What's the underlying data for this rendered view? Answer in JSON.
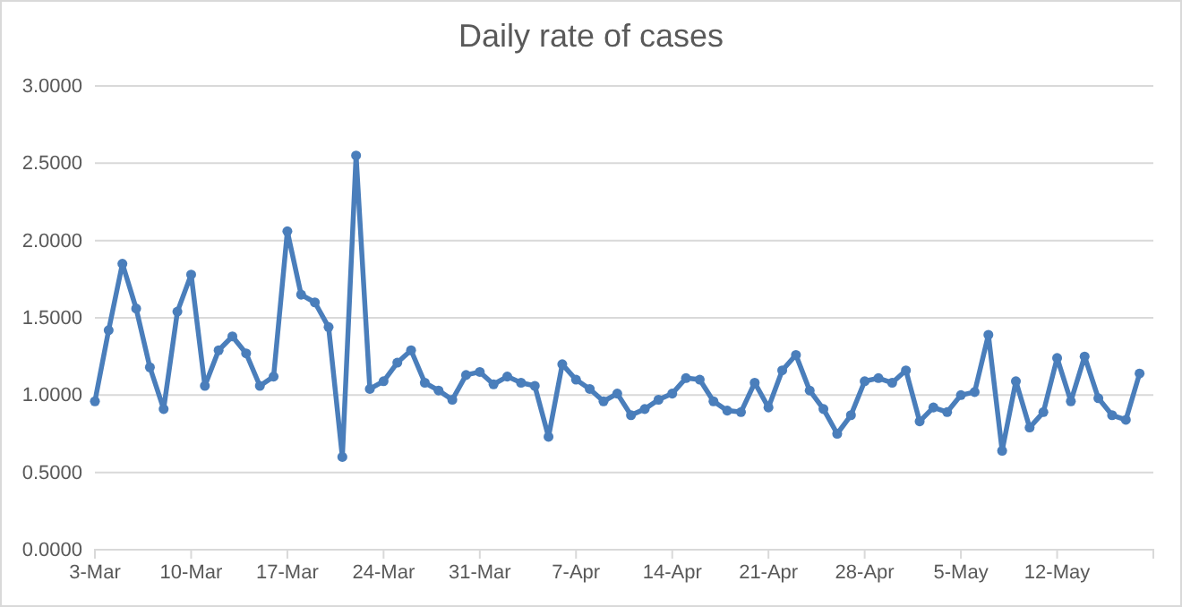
{
  "chart_data": {
    "type": "line",
    "title": "Daily rate of cases",
    "x": [
      "--03-03",
      "--03-04",
      "--03-05",
      "--03-06",
      "--03-07",
      "--03-08",
      "--03-09",
      "--03-10",
      "--03-11",
      "--03-12",
      "--03-13",
      "--03-14",
      "--03-15",
      "--03-16",
      "--03-17",
      "--03-18",
      "--03-19",
      "--03-20",
      "--03-21",
      "--03-22",
      "--03-23",
      "--03-24",
      "--03-25",
      "--03-26",
      "--03-27",
      "--03-28",
      "--03-29",
      "--03-30",
      "--03-31",
      "--04-01",
      "--04-02",
      "--04-03",
      "--04-04",
      "--04-05",
      "--04-06",
      "--04-07",
      "--04-08",
      "--04-09",
      "--04-10",
      "--04-11",
      "--04-12",
      "--04-13",
      "--04-14",
      "--04-15",
      "--04-16",
      "--04-17",
      "--04-18",
      "--04-19",
      "--04-20",
      "--04-21",
      "--04-22",
      "--04-23",
      "--04-24",
      "--04-25",
      "--04-26",
      "--04-27",
      "--04-28",
      "--04-29",
      "--04-30",
      "--05-01",
      "--05-02",
      "--05-03",
      "--05-04",
      "--05-05",
      "--05-06",
      "--05-07",
      "--05-08",
      "--05-09",
      "--05-10",
      "--05-11",
      "--05-12",
      "--05-13",
      "--05-14",
      "--05-15",
      "--05-16",
      "--05-17",
      "--05-18"
    ],
    "series": [
      {
        "color": "#4a7ebb",
        "values": [
          0.96,
          1.42,
          1.85,
          1.56,
          1.18,
          0.91,
          1.54,
          1.78,
          1.06,
          1.29,
          1.38,
          1.27,
          1.06,
          1.12,
          2.06,
          1.65,
          1.6,
          1.44,
          0.6,
          2.55,
          1.04,
          1.09,
          1.21,
          1.29,
          1.08,
          1.03,
          0.97,
          1.13,
          1.15,
          1.07,
          1.12,
          1.08,
          1.06,
          0.73,
          1.2,
          1.1,
          1.04,
          0.96,
          1.01,
          0.87,
          0.91,
          0.97,
          1.01,
          1.11,
          1.1,
          0.96,
          0.9,
          0.89,
          1.08,
          0.92,
          1.16,
          1.26,
          1.03,
          0.91,
          0.75,
          0.87,
          1.09,
          1.11,
          1.08,
          1.16,
          0.83,
          0.92,
          0.89,
          1.0,
          1.02,
          1.39,
          0.64,
          1.09,
          0.79,
          0.89,
          1.24,
          0.96,
          1.25,
          0.98,
          0.87,
          0.84,
          1.14
        ]
      }
    ],
    "xlim": [
      "--03-03",
      "--05-19"
    ],
    "xticks": [
      {
        "value": "--03-03",
        "label": "3-Mar"
      },
      {
        "value": "--03-10",
        "label": "10-Mar"
      },
      {
        "value": "--03-17",
        "label": "17-Mar"
      },
      {
        "value": "--03-24",
        "label": "24-Mar"
      },
      {
        "value": "--03-31",
        "label": "31-Mar"
      },
      {
        "value": "--04-07",
        "label": "7-Apr"
      },
      {
        "value": "--04-14",
        "label": "14-Apr"
      },
      {
        "value": "--04-21",
        "label": "21-Apr"
      },
      {
        "value": "--04-28",
        "label": "28-Apr"
      },
      {
        "value": "--05-05",
        "label": "5-May"
      },
      {
        "value": "--05-12",
        "label": "12-May"
      }
    ],
    "ylim": [
      0,
      3
    ],
    "yticks": [
      {
        "value": 0,
        "label": "0.0000"
      },
      {
        "value": 0.5,
        "label": "0.5000"
      },
      {
        "value": 1,
        "label": "1.0000"
      },
      {
        "value": 1.5,
        "label": "1.5000"
      },
      {
        "value": 2,
        "label": "2.0000"
      },
      {
        "value": 2.5,
        "label": "2.5000"
      },
      {
        "value": 3,
        "label": "3.0000"
      }
    ],
    "grid": "y",
    "marker": "circle",
    "line_style": "solid"
  }
}
